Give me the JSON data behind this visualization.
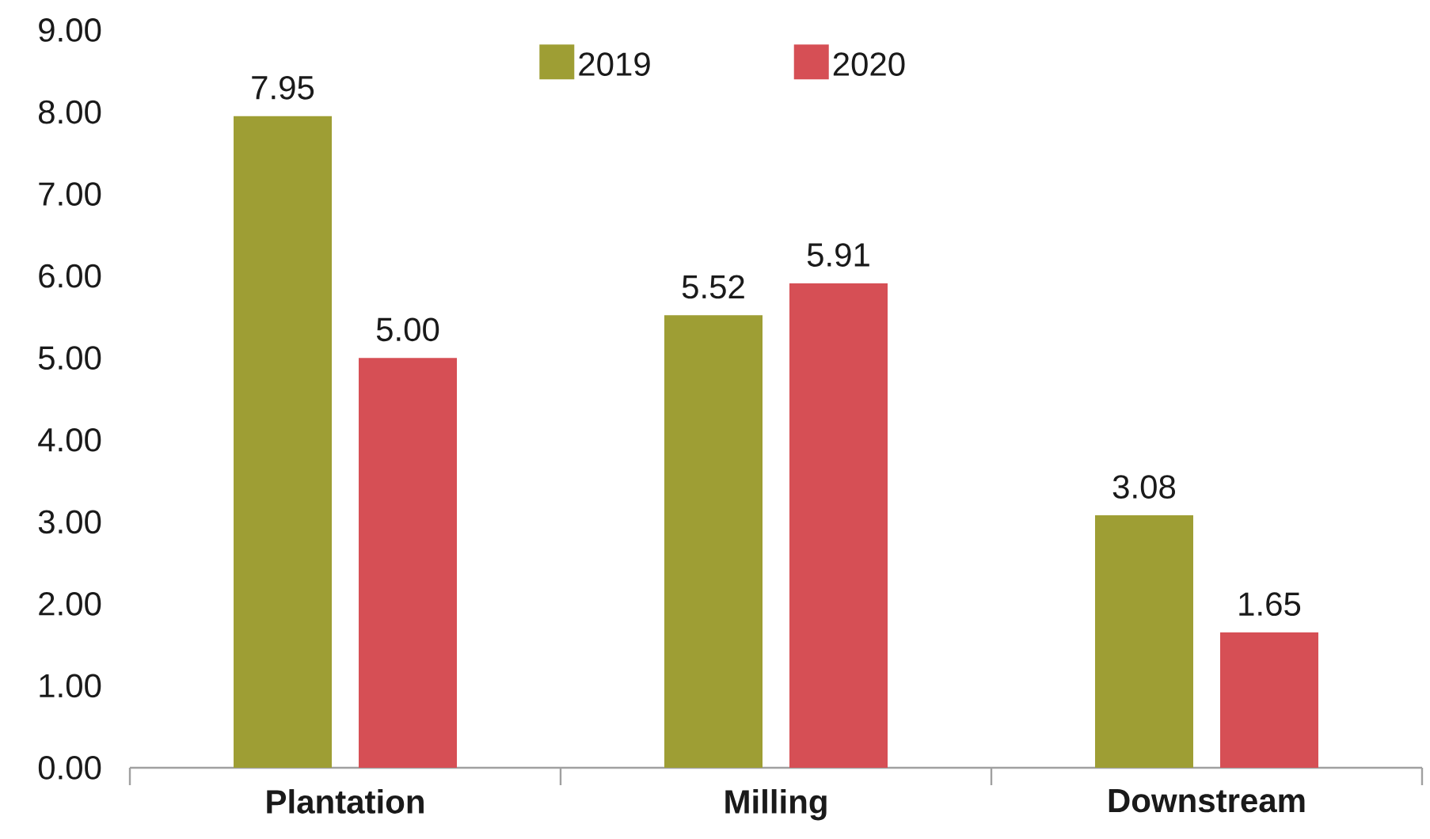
{
  "chart_data": {
    "type": "bar",
    "categories": [
      "Plantation",
      "Milling",
      "Downstream"
    ],
    "series": [
      {
        "name": "2019",
        "color": "#9e9e34",
        "values": [
          7.95,
          5.52,
          3.08
        ],
        "value_labels": [
          "7.95",
          "5.52",
          "3.08"
        ]
      },
      {
        "name": "2020",
        "color": "#d64f55",
        "values": [
          5.0,
          5.91,
          1.65
        ],
        "value_labels": [
          "5.00",
          "5.91",
          "1.65"
        ]
      }
    ],
    "ylim": [
      0,
      9
    ],
    "yticks": [
      {
        "value": 0,
        "label": "0.00"
      },
      {
        "value": 1,
        "label": "1.00"
      },
      {
        "value": 2,
        "label": "2.00"
      },
      {
        "value": 3,
        "label": "3.00"
      },
      {
        "value": 4,
        "label": "4.00"
      },
      {
        "value": 5,
        "label": "5.00"
      },
      {
        "value": 6,
        "label": "6.00"
      },
      {
        "value": 7,
        "label": "7.00"
      },
      {
        "value": 8,
        "label": "8.00"
      },
      {
        "value": 9,
        "label": "9.00"
      }
    ],
    "legend": "top"
  }
}
